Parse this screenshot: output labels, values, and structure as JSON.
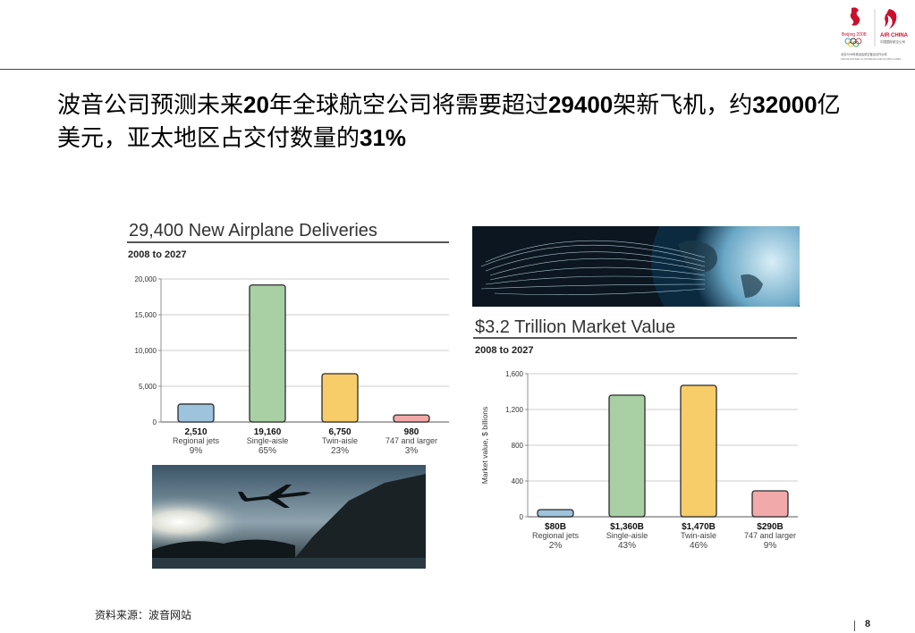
{
  "title": {
    "parts": [
      {
        "t": "波音公司预测未来",
        "b": false
      },
      {
        "t": "20",
        "b": true
      },
      {
        "t": "年全球航空公司将需要超过",
        "b": false
      },
      {
        "t": "29400",
        "b": true
      },
      {
        "t": "架新飞机，约",
        "b": false
      },
      {
        "t": "32000",
        "b": true
      },
      {
        "t": "亿美元，亚太地区占交付数量的",
        "b": false
      },
      {
        "t": "31%",
        "b": true
      }
    ]
  },
  "logos": {
    "left_text": "Beijing 2008",
    "right_text": "AIR CHINA",
    "right_sub": "中国国际航空公司",
    "partner_line": "北京2008年奥运会航空客运合作伙伴",
    "partner_line_en": "AIRLINE PARTNER OF THE BEIJING 2008 OLYMPIC GAMES",
    "brand_red": "#c8102e"
  },
  "chart_data": [
    {
      "type": "bar",
      "title": "29,400 New Airplane Deliveries",
      "subtitle": "2008 to 2027",
      "categories": [
        "Regional jets",
        "Single-aisle",
        "Twin-aisle",
        "747 and larger"
      ],
      "values": [
        2510,
        19160,
        6750,
        980
      ],
      "value_labels": [
        "2,510",
        "19,160",
        "6,750",
        "980"
      ],
      "shares": [
        "9%",
        "65%",
        "23%",
        "3%"
      ],
      "colors": [
        "#9dc3dd",
        "#a9cfa4",
        "#f7cd6a",
        "#f2a9a9"
      ],
      "ylim": [
        0,
        20000
      ],
      "yticks": [
        0,
        5000,
        10000,
        15000,
        20000
      ],
      "ytick_labels": [
        "0",
        "5,000",
        "10,000",
        "15,000",
        "20,000"
      ],
      "grid": true,
      "ylabel": ""
    },
    {
      "type": "bar",
      "title": "$3.2 Trillion Market Value",
      "subtitle": "2008 to 2027",
      "categories": [
        "Regional jets",
        "Single-aisle",
        "Twin-aisle",
        "747 and larger"
      ],
      "values": [
        80,
        1360,
        1470,
        290
      ],
      "value_labels": [
        "$80B",
        "$1,360B",
        "$1,470B",
        "$290B"
      ],
      "shares": [
        "2%",
        "43%",
        "46%",
        "9%"
      ],
      "colors": [
        "#9dc3dd",
        "#a9cfa4",
        "#f7cd6a",
        "#f2a9a9"
      ],
      "ylim": [
        0,
        1600
      ],
      "yticks": [
        0,
        400,
        800,
        1200,
        1600
      ],
      "ytick_labels": [
        "0",
        "400",
        "800",
        "1,200",
        "1,600"
      ],
      "grid": true,
      "ylabel": "Market value, $ billions"
    }
  ],
  "footer": {
    "source": "资料来源：波音网站",
    "page": "8"
  }
}
